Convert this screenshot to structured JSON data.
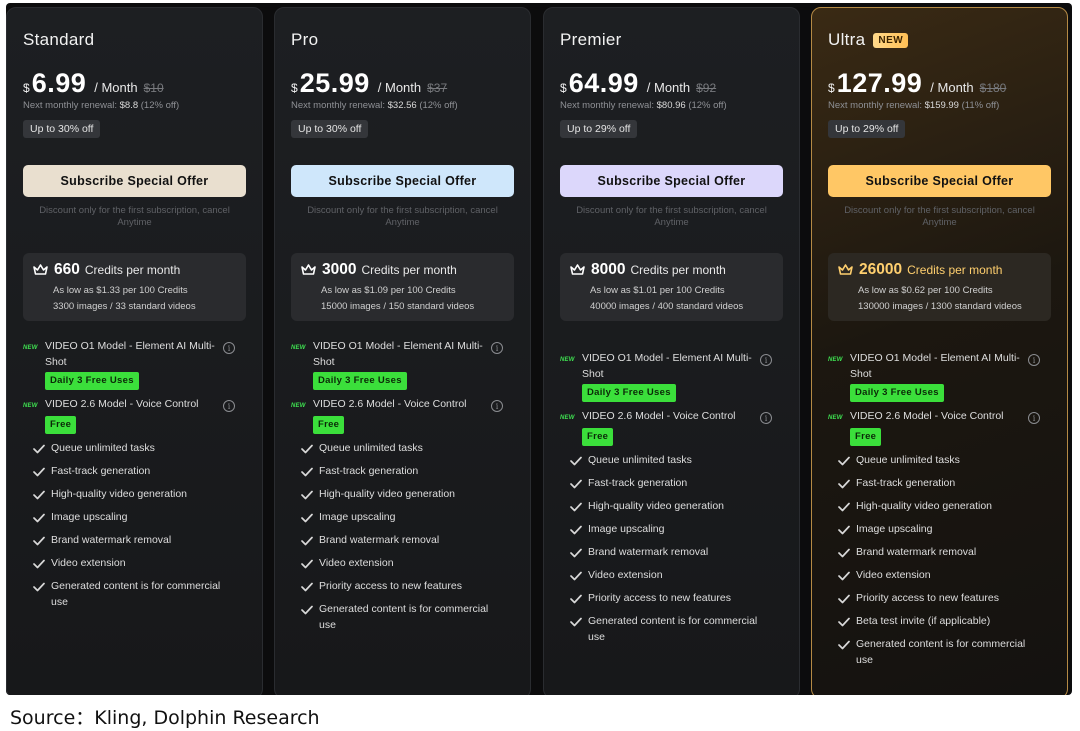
{
  "plans": [
    {
      "name": "Standard",
      "badge": "",
      "currency": "$",
      "price": "6.99",
      "period": "/ Month",
      "old_price": "$10",
      "renewal_label": "Next monthly renewal:",
      "renewal_price": "$8.8",
      "renewal_off": "(12% off)",
      "discount": "Up to 30% off",
      "subscribe_label": "Subscribe Special Offer",
      "subscribe_color": "#e9dfcf",
      "discount_note": "Discount only for the first subscription, cancel Anytime",
      "credits": "660",
      "credits_unit": "Credits per month",
      "credits_rate": "As low as $1.33 per 100 Credits",
      "credits_usage": "3300 images / 33 standard videos",
      "models": [
        {
          "new": "NEW",
          "name": "VIDEO O1 Model - Element AI Multi-Shot",
          "badge": "Daily 3 Free Uses"
        },
        {
          "new": "NEW",
          "name": "VIDEO 2.6 Model - Voice Control",
          "badge": "Free"
        }
      ],
      "features": [
        "Queue unlimited tasks",
        "Fast-track generation",
        "High-quality video generation",
        "Image upscaling",
        "Brand watermark removal",
        "Video extension",
        "Generated content is for commercial use"
      ]
    },
    {
      "name": "Pro",
      "badge": "",
      "currency": "$",
      "price": "25.99",
      "period": "/ Month",
      "old_price": "$37",
      "renewal_label": "Next monthly renewal:",
      "renewal_price": "$32.56",
      "renewal_off": "(12% off)",
      "discount": "Up to 30% off",
      "subscribe_label": "Subscribe Special Offer",
      "subscribe_color": "#cfe7fb",
      "discount_note": "Discount only for the first subscription, cancel Anytime",
      "credits": "3000",
      "credits_unit": "Credits per month",
      "credits_rate": "As low as $1.09 per 100 Credits",
      "credits_usage": "15000 images / 150 standard videos",
      "models": [
        {
          "new": "NEW",
          "name": "VIDEO O1 Model - Element AI Multi-Shot",
          "badge": "Daily 3 Free Uses"
        },
        {
          "new": "NEW",
          "name": "VIDEO 2.6 Model - Voice Control",
          "badge": "Free"
        }
      ],
      "features": [
        "Queue unlimited tasks",
        "Fast-track generation",
        "High-quality video generation",
        "Image upscaling",
        "Brand watermark removal",
        "Video extension",
        "Priority access to new features",
        "Generated content is for commercial use"
      ]
    },
    {
      "name": "Premier",
      "badge": "",
      "currency": "$",
      "price": "64.99",
      "period": "/ Month",
      "old_price": "$92",
      "renewal_label": "Next monthly renewal:",
      "renewal_price": "$80.96",
      "renewal_off": "(12% off)",
      "discount": "Up to 29% off",
      "subscribe_label": "Subscribe Special Offer",
      "subscribe_color": "#dcd7fb",
      "discount_note": "Discount only for the first subscription, cancel Anytime",
      "credits": "8000",
      "credits_unit": "Credits per month",
      "credits_rate": "As low as $1.01 per 100 Credits",
      "credits_usage": "40000 images / 400 standard videos",
      "models": [
        {
          "new": "NEW",
          "name": "VIDEO O1 Model - Element AI Multi-Shot",
          "badge": "Daily 3 Free Uses"
        },
        {
          "new": "NEW",
          "name": "VIDEO 2.6 Model - Voice Control",
          "badge": "Free"
        }
      ],
      "features": [
        "Queue unlimited tasks",
        "Fast-track generation",
        "High-quality video generation",
        "Image upscaling",
        "Brand watermark removal",
        "Video extension",
        "Priority access to new features",
        "Generated content is for commercial use"
      ]
    },
    {
      "name": "Ultra",
      "badge": "NEW",
      "currency": "$",
      "price": "127.99",
      "period": "/ Month",
      "old_price": "$180",
      "renewal_label": "Next monthly renewal:",
      "renewal_price": "$159.99",
      "renewal_off": "(11% off)",
      "discount": "Up to 29% off",
      "subscribe_label": "Subscribe Special Offer",
      "subscribe_color": "#ffc765",
      "discount_note": "Discount only for the first subscription, cancel Anytime",
      "credits": "26000",
      "credits_unit": "Credits per month",
      "credits_rate": "As low as $0.62 per 100 Credits",
      "credits_usage": "130000 images / 1300 standard videos",
      "models": [
        {
          "new": "NEW",
          "name": "VIDEO O1 Model - Element AI Multi-Shot",
          "badge": "Daily 3 Free Uses"
        },
        {
          "new": "NEW",
          "name": "VIDEO 2.6 Model - Voice Control",
          "badge": "Free"
        }
      ],
      "features": [
        "Queue unlimited tasks",
        "Fast-track generation",
        "High-quality video generation",
        "Image upscaling",
        "Brand watermark removal",
        "Video extension",
        "Priority access to new features",
        "Beta test invite (if applicable)",
        "Generated content is for commercial use"
      ]
    }
  ],
  "source": "Source：Kling, Dolphin Research"
}
